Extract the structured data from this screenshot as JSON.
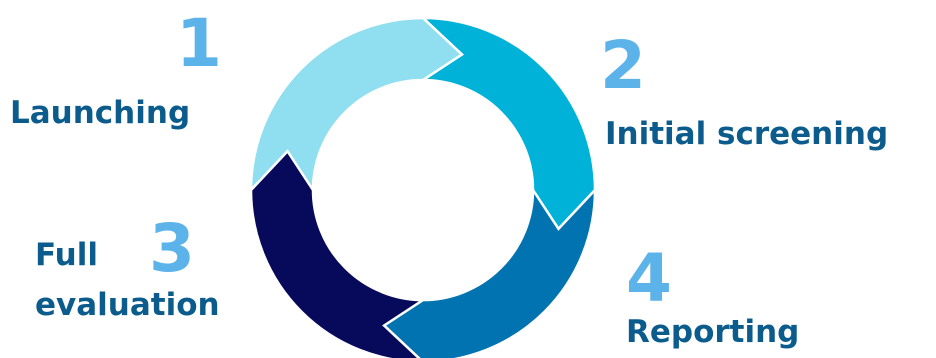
{
  "steps": [
    {
      "number": "1",
      "label": "Launching",
      "color": "#8fdff0"
    },
    {
      "number": "2",
      "label": "Initial screening",
      "color": "#00b2d8"
    },
    {
      "number": "3",
      "label_line1": "Full",
      "label_line2": "evaluation",
      "color": "#07095a"
    },
    {
      "number": "4",
      "label": "Reporting",
      "color": "#0173b1"
    }
  ],
  "colors": {
    "number": "#5cb3ea",
    "label": "#0b5c8c",
    "separator": "#ffffff"
  }
}
